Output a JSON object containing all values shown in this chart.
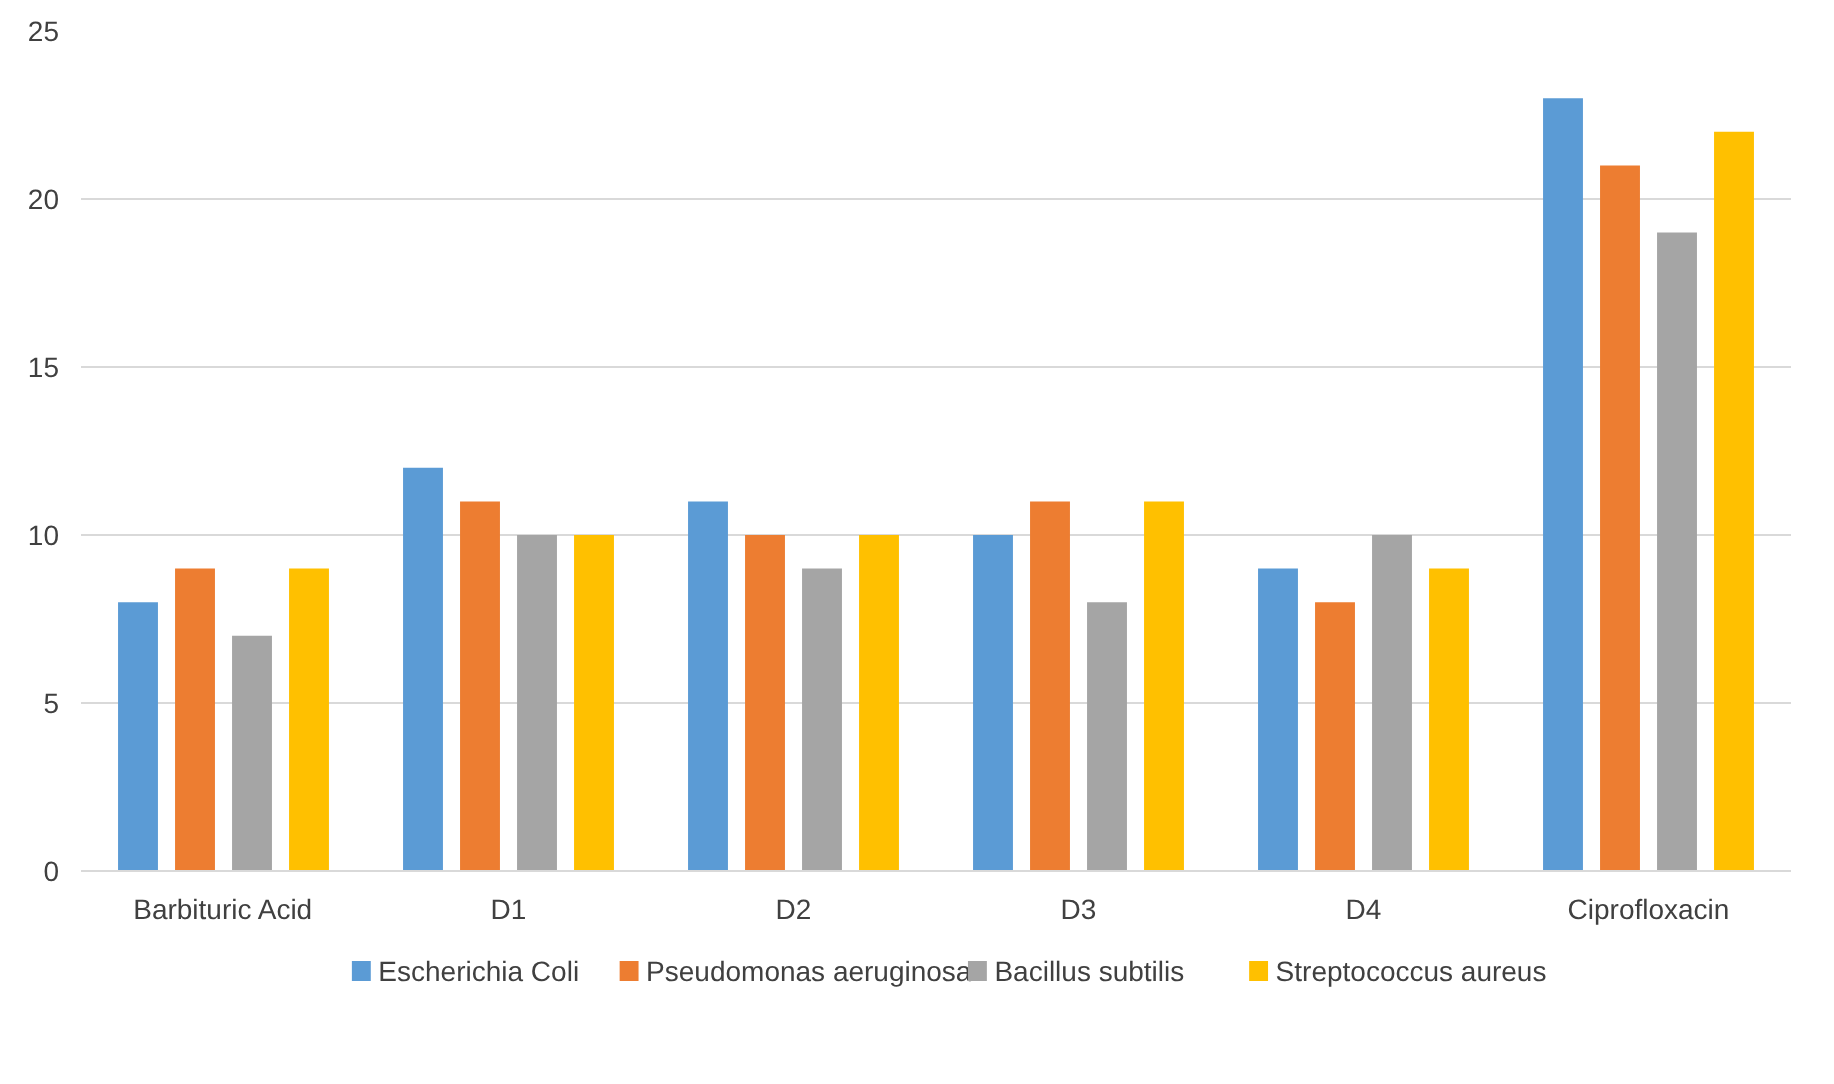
{
  "chart_data": {
    "type": "bar",
    "categories": [
      "Barbituric Acid",
      "D1",
      "D2",
      "D3",
      "D4",
      "Ciprofloxacin"
    ],
    "series": [
      {
        "name": "Escherichia Coli",
        "color": "#5b9bd5",
        "values": [
          8,
          12,
          11,
          10,
          9,
          23
        ]
      },
      {
        "name": "Pseudomonas aeruginosa",
        "color": "#ed7d31",
        "values": [
          9,
          11,
          10,
          11,
          8,
          21
        ]
      },
      {
        "name": "Bacillus subtilis",
        "color": "#a5a5a5",
        "values": [
          7,
          10,
          9,
          8,
          10,
          19
        ]
      },
      {
        "name": "Streptococcus aureus",
        "color": "#ffc000",
        "values": [
          9,
          10,
          10,
          11,
          9,
          22
        ]
      }
    ],
    "ylim": [
      0,
      25
    ],
    "yticks": [
      0,
      5,
      10,
      15,
      20,
      25
    ],
    "grid": "y",
    "legend": "bottom"
  }
}
